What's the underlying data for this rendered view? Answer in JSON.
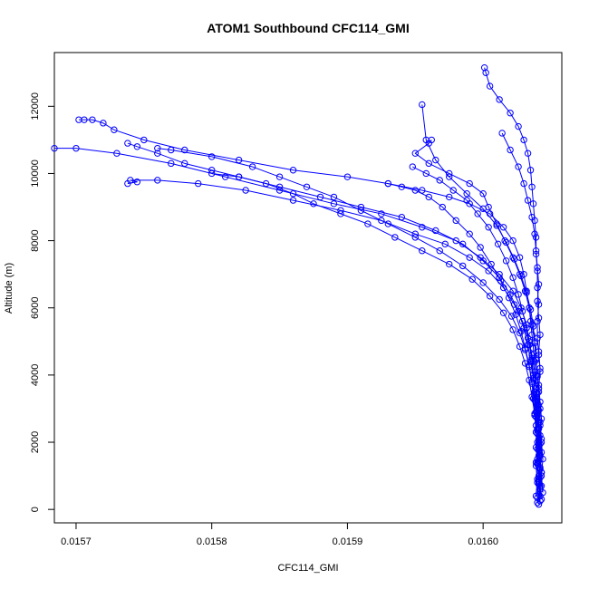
{
  "chart_data": {
    "type": "scatter",
    "title": "ATOM1 Southbound CFC114_GMI",
    "xlabel": "CFC114_GMI",
    "ylabel": "Altitude (m)",
    "xlim": [
      0.015684,
      0.016058
    ],
    "ylim": [
      -400,
      13600
    ],
    "x_ticks": [
      0.0157,
      0.0158,
      0.0159,
      0.016
    ],
    "x_tick_labels": [
      "0.0157",
      "0.0158",
      "0.0159",
      "0.0160"
    ],
    "y_ticks": [
      0,
      2000,
      4000,
      6000,
      8000,
      10000,
      12000
    ],
    "y_tick_labels": [
      "0",
      "2000",
      "4000",
      "6000",
      "8000",
      "10000",
      "12000"
    ],
    "grid": false,
    "legend": "none",
    "marker": "open-circle",
    "color": "#0000ff",
    "series": [
      {
        "x": [
          0.016041,
          0.016042,
          0.016041,
          0.016042,
          0.016041,
          0.01604,
          0.016041,
          0.01604,
          0.016039,
          0.016039,
          0.016039,
          0.016038,
          0.016037,
          0.016036,
          0.016035,
          0.016034,
          0.016032,
          0.01603,
          0.016027,
          0.016022,
          0.016015,
          0.016005,
          0.01599,
          0.015975,
          0.015955,
          0.01593,
          0.0159,
          0.01586,
          0.01582,
          0.01578,
          0.01575,
          0.015728,
          0.01572,
          0.015712,
          0.015706,
          0.015702
        ],
        "y": [
          150,
          400,
          800,
          1200,
          1600,
          2000,
          2400,
          2800,
          3200,
          3600,
          4000,
          4400,
          4800,
          5200,
          5600,
          6000,
          6500,
          7000,
          7500,
          8000,
          8400,
          8800,
          9100,
          9300,
          9500,
          9700,
          9900,
          10100,
          10400,
          10700,
          11000,
          11300,
          11500,
          11600,
          11600,
          11600
        ]
      },
      {
        "x": [
          0.01604,
          0.016042,
          0.016041,
          0.01604,
          0.016041,
          0.016039,
          0.01604,
          0.016038,
          0.016037,
          0.016036,
          0.016034,
          0.016032,
          0.016028,
          0.016022,
          0.016012,
          0.015998,
          0.01598,
          0.015955,
          0.015925,
          0.01589,
          0.01585,
          0.01581,
          0.01577,
          0.01573,
          0.0157,
          0.015684
        ],
        "y": [
          200,
          600,
          1000,
          1500,
          2000,
          2500,
          3000,
          3500,
          4000,
          4500,
          5000,
          5500,
          6000,
          6500,
          7000,
          7500,
          8000,
          8400,
          8800,
          9100,
          9500,
          9900,
          10300,
          10600,
          10750,
          10750
        ]
      },
      {
        "x": [
          0.016043,
          0.016042,
          0.016043,
          0.016042,
          0.016041,
          0.016041,
          0.01604,
          0.016039,
          0.016038,
          0.016036,
          0.016033,
          0.016029,
          0.016023,
          0.016015,
          0.016004,
          0.01599,
          0.015972,
          0.01595,
          0.015925,
          0.015895,
          0.01586,
          0.015825,
          0.01579,
          0.01576,
          0.01574,
          0.015745,
          0.015738
        ],
        "y": [
          300,
          700,
          1100,
          1600,
          2100,
          2600,
          3100,
          3600,
          4100,
          4600,
          5100,
          5600,
          6100,
          6600,
          7100,
          7500,
          7900,
          8200,
          8600,
          8900,
          9200,
          9500,
          9700,
          9800,
          9800,
          9750,
          9700
        ]
      },
      {
        "x": [
          0.016039,
          0.01604,
          0.016039,
          0.016041,
          0.01604,
          0.016039,
          0.016038,
          0.016037,
          0.016035,
          0.016033,
          0.01603,
          0.016026,
          0.01602,
          0.016012,
          0.016,
          0.015985,
          0.015965,
          0.01594,
          0.01591,
          0.01588,
          0.01585,
          0.01582,
          0.0158,
          0.01578,
          0.01576,
          0.015745,
          0.015738
        ],
        "y": [
          400,
          900,
          1400,
          1900,
          2400,
          2900,
          3400,
          3900,
          4400,
          4900,
          5400,
          5900,
          6400,
          6900,
          7400,
          7900,
          8300,
          8700,
          9000,
          9300,
          9600,
          9900,
          10100,
          10300,
          10600,
          10800,
          10900
        ]
      },
      {
        "x": [
          0.016042,
          0.016041,
          0.016042,
          0.016041,
          0.01604,
          0.016039,
          0.016038,
          0.016036,
          0.016034,
          0.016031,
          0.016027,
          0.016021,
          0.016012,
          0.016,
          0.015985,
          0.015968,
          0.01595,
          0.01593,
          0.01591,
          0.01589,
          0.01587,
          0.01585,
          0.01583,
          0.0158,
          0.01577,
          0.01576
        ],
        "y": [
          250,
          750,
          1250,
          1750,
          2250,
          2750,
          3250,
          3750,
          4250,
          4750,
          5250,
          5750,
          6250,
          6750,
          7250,
          7700,
          8100,
          8500,
          8900,
          9300,
          9600,
          9900,
          10200,
          10500,
          10700,
          10750
        ]
      },
      {
        "x": [
          0.01604,
          0.016041,
          0.01604,
          0.016039,
          0.01604,
          0.016038,
          0.016036,
          0.016034,
          0.016031,
          0.016027,
          0.016022,
          0.016015,
          0.016005,
          0.015992,
          0.015975,
          0.015955,
          0.015935,
          0.015915,
          0.015895,
          0.015875,
          0.01586,
          0.01584,
          0.01582,
          0.0158
        ],
        "y": [
          350,
          850,
          1350,
          1850,
          2350,
          2850,
          3350,
          3850,
          4350,
          4850,
          5350,
          5850,
          6350,
          6850,
          7300,
          7700,
          8100,
          8500,
          8800,
          9100,
          9400,
          9700,
          9900,
          10000
        ]
      },
      {
        "x": [
          0.016044,
          0.016043,
          0.016044,
          0.016043,
          0.016042,
          0.016042,
          0.016041,
          0.01604,
          0.016039,
          0.016038,
          0.016036,
          0.016034,
          0.016031,
          0.016027,
          0.016022,
          0.016016,
          0.01601,
          0.016004,
          0.016,
          0.01599,
          0.015975,
          0.01596,
          0.01595,
          0.01596,
          0.015962
        ],
        "y": [
          500,
          1000,
          1500,
          2000,
          2500,
          3000,
          3500,
          4000,
          4500,
          5000,
          5500,
          6000,
          6500,
          7000,
          7500,
          8000,
          8500,
          9000,
          9400,
          9700,
          10000,
          10300,
          10600,
          10900,
          11000
        ]
      },
      {
        "x": [
          0.016041,
          0.016042,
          0.016041,
          0.016042,
          0.016041,
          0.016041,
          0.01604,
          0.01604,
          0.016039,
          0.016038,
          0.016037,
          0.016035,
          0.016032,
          0.016028,
          0.016023,
          0.016017,
          0.01601,
          0.016,
          0.015988,
          0.015975,
          0.015965,
          0.015958,
          0.015955
        ],
        "y": [
          450,
          950,
          1450,
          1950,
          2450,
          2950,
          3450,
          3950,
          4450,
          4950,
          5450,
          5950,
          6450,
          6950,
          7450,
          7950,
          8450,
          8950,
          9400,
          9900,
          10400,
          11000,
          12050
        ]
      },
      {
        "x": [
          0.016042,
          0.016043,
          0.016042,
          0.016043,
          0.016042,
          0.016041,
          0.016041,
          0.016042,
          0.016041,
          0.01604,
          0.01604,
          0.016041,
          0.01604,
          0.01604,
          0.016039,
          0.016039,
          0.016038,
          0.016037,
          0.016036,
          0.016035,
          0.016033,
          0.01603,
          0.016026,
          0.01602,
          0.016012,
          0.016005,
          0.016002,
          0.016001
        ],
        "y": [
          600,
          1100,
          1600,
          2100,
          2600,
          3100,
          3600,
          4100,
          4600,
          5100,
          5600,
          6100,
          6600,
          7100,
          7600,
          8100,
          8600,
          9100,
          9600,
          10100,
          10600,
          11000,
          11400,
          11800,
          12200,
          12600,
          13000,
          13150
        ]
      },
      {
        "x": [
          0.016043,
          0.016042,
          0.016043,
          0.016042,
          0.016043,
          0.016042,
          0.016041,
          0.016042,
          0.016041,
          0.016042,
          0.016041,
          0.01604,
          0.016041,
          0.01604,
          0.016039,
          0.016038,
          0.016036,
          0.016033,
          0.01603,
          0.016026,
          0.01602,
          0.016014
        ],
        "y": [
          700,
          1200,
          1700,
          2200,
          2700,
          3200,
          3700,
          4200,
          4700,
          5200,
          5700,
          6200,
          6700,
          7200,
          7700,
          8200,
          8700,
          9200,
          9700,
          10200,
          10700,
          11200
        ]
      },
      {
        "x": [
          0.01604,
          0.016039,
          0.01604,
          0.016039,
          0.016038,
          0.016037,
          0.016036,
          0.016034,
          0.016031,
          0.016028,
          0.016024,
          0.016019,
          0.016013,
          0.016006,
          0.015998,
          0.01599,
          0.01598,
          0.01597,
          0.01596,
          0.01595,
          0.01594,
          0.01593
        ],
        "y": [
          800,
          1300,
          1800,
          2300,
          2800,
          3300,
          3800,
          4300,
          4800,
          5300,
          5800,
          6300,
          6800,
          7300,
          7800,
          8200,
          8600,
          9000,
          9300,
          9500,
          9600,
          9700
        ]
      },
      {
        "x": [
          0.016041,
          0.01604,
          0.016041,
          0.01604,
          0.016039,
          0.016038,
          0.016037,
          0.016036,
          0.016034,
          0.016032,
          0.016029,
          0.016026,
          0.016022,
          0.016017,
          0.016011,
          0.016004,
          0.015996,
          0.015988,
          0.015978,
          0.015968,
          0.015958,
          0.015948
        ],
        "y": [
          900,
          1400,
          1900,
          2400,
          2900,
          3400,
          3900,
          4400,
          4900,
          5400,
          5900,
          6400,
          6900,
          7400,
          7900,
          8400,
          8800,
          9200,
          9500,
          9800,
          10000,
          10200
        ]
      }
    ]
  }
}
